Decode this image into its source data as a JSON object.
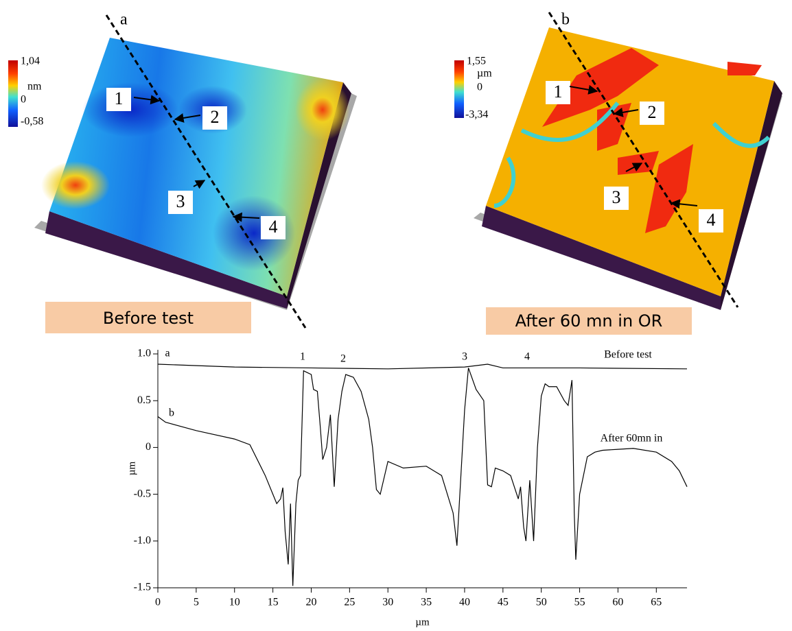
{
  "panels": [
    {
      "letter": "a",
      "scale_max": "1,04",
      "scale_unit": "nm",
      "scale_zero": "0",
      "scale_min": "-0,58",
      "markers": [
        "1",
        "2",
        "3",
        "4"
      ],
      "caption": "Before test"
    },
    {
      "letter": "b",
      "scale_max": "1,55",
      "scale_unit": "µm",
      "scale_zero": "0",
      "scale_min": "-3,34",
      "markers": [
        "1",
        "2",
        "3",
        "4"
      ],
      "caption": "After 60 mn in OR"
    }
  ],
  "chart_data": {
    "type": "line",
    "x_label": "µm",
    "y_label": "µm",
    "xlim": [
      0,
      69
    ],
    "ylim": [
      -1.5,
      1.0
    ],
    "xticks": [
      0,
      5,
      10,
      15,
      20,
      25,
      30,
      35,
      40,
      45,
      50,
      55,
      60,
      65
    ],
    "yticks": [
      {
        "value": 1,
        "label": "1.0"
      },
      0.5,
      0,
      -0.5,
      {
        "value": -1,
        "label": "-1.0"
      },
      -1.5
    ],
    "annotations": [
      "a",
      "b",
      "1",
      "2",
      "3",
      "4"
    ],
    "series": [
      {
        "name": "Before test",
        "color": "#000000",
        "x": [
          0,
          10,
          20,
          30,
          40,
          43,
          45,
          55,
          69
        ],
        "values": [
          0.89,
          0.86,
          0.85,
          0.84,
          0.86,
          0.89,
          0.85,
          0.85,
          0.84
        ]
      },
      {
        "name": "After 60mn in",
        "color": "#000000",
        "x": [
          0,
          1,
          5,
          10,
          12,
          14,
          15,
          15.5,
          16,
          16.3,
          16.6,
          17,
          17.3,
          17.6,
          18,
          18.3,
          18.6,
          19,
          19.5,
          20,
          20.3,
          20.8,
          21.2,
          21.5,
          22,
          22.5,
          23,
          23.5,
          24,
          24.5,
          25.5,
          26.5,
          27.5,
          28,
          28.5,
          29,
          30,
          32,
          35,
          37,
          38.5,
          39,
          40,
          40.5,
          41.5,
          42.5,
          43,
          43.5,
          44,
          45,
          46,
          47,
          47.3,
          47.7,
          48,
          48.5,
          49,
          49.5,
          50,
          50.5,
          51,
          52,
          53,
          53.5,
          54,
          54.3,
          54.5,
          55,
          56,
          57,
          58,
          60,
          62,
          65,
          67,
          68,
          69
        ],
        "values": [
          0.33,
          0.27,
          0.18,
          0.09,
          0.03,
          -0.3,
          -0.5,
          -0.6,
          -0.55,
          -0.43,
          -0.9,
          -1.25,
          -0.6,
          -1.48,
          -0.6,
          -0.35,
          -0.3,
          0.82,
          0.8,
          0.78,
          0.62,
          0.6,
          0.2,
          -0.13,
          0,
          0.35,
          -0.42,
          0.3,
          0.6,
          0.78,
          0.75,
          0.6,
          0.3,
          0,
          -0.45,
          -0.5,
          -0.15,
          -0.22,
          -0.2,
          -0.3,
          -0.7,
          -1.05,
          0.4,
          0.85,
          0.62,
          0.5,
          -0.4,
          -0.42,
          -0.22,
          -0.25,
          -0.3,
          -0.55,
          -0.42,
          -0.85,
          -1.0,
          -0.35,
          -1.0,
          0,
          0.55,
          0.68,
          0.65,
          0.65,
          0.5,
          0.45,
          0.72,
          -0.7,
          -1.2,
          -0.5,
          -0.1,
          -0.05,
          -0.03,
          -0.02,
          -0.01,
          -0.05,
          -0.15,
          -0.25,
          -0.42
        ]
      }
    ]
  }
}
